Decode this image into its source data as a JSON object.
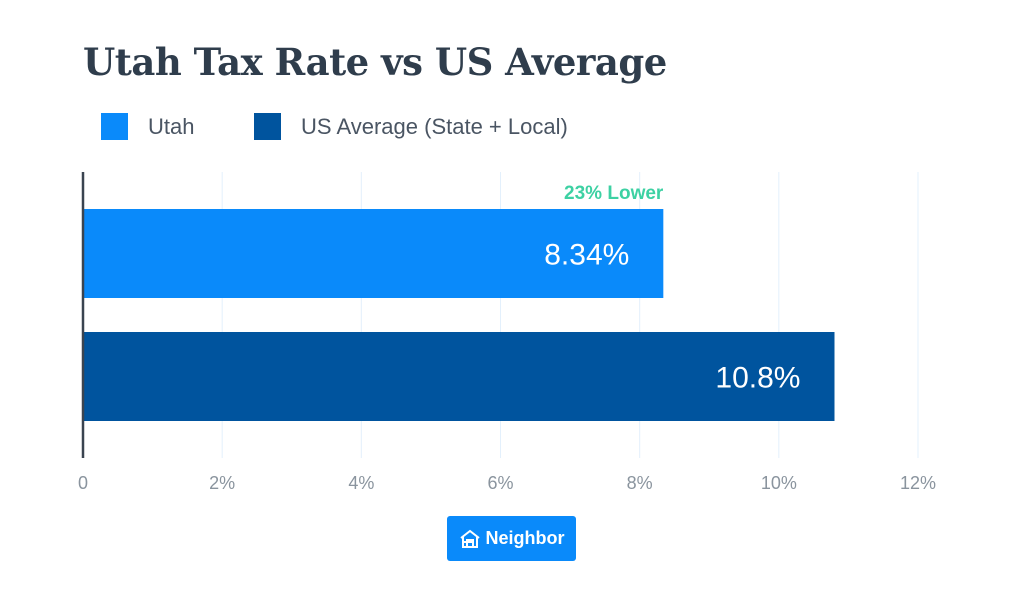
{
  "chart_data": {
    "type": "bar",
    "orientation": "horizontal",
    "title": "Utah Tax Rate vs US Average",
    "categories": [
      "Utah",
      "US Average (State + Local)"
    ],
    "values": [
      8.34,
      10.8
    ],
    "data_labels": [
      "8.34%",
      "10.8%"
    ],
    "colors": [
      "#0a8afa",
      "#00549e"
    ],
    "annotation": {
      "text": "23% Lower",
      "color": "#3dd1a3"
    },
    "xlim": [
      0,
      12
    ],
    "xticks": [
      0,
      2,
      4,
      6,
      8,
      10,
      12
    ],
    "xtick_labels": [
      "0",
      "2%",
      "4%",
      "6%",
      "8%",
      "10%",
      "12%"
    ],
    "grid": true,
    "legend": {
      "placement": "top-left",
      "entries": [
        "Utah",
        "US Average (State + Local)"
      ]
    }
  },
  "brand": {
    "label": "Neighbor",
    "icon": "house-icon",
    "color": "#0a8afa"
  }
}
